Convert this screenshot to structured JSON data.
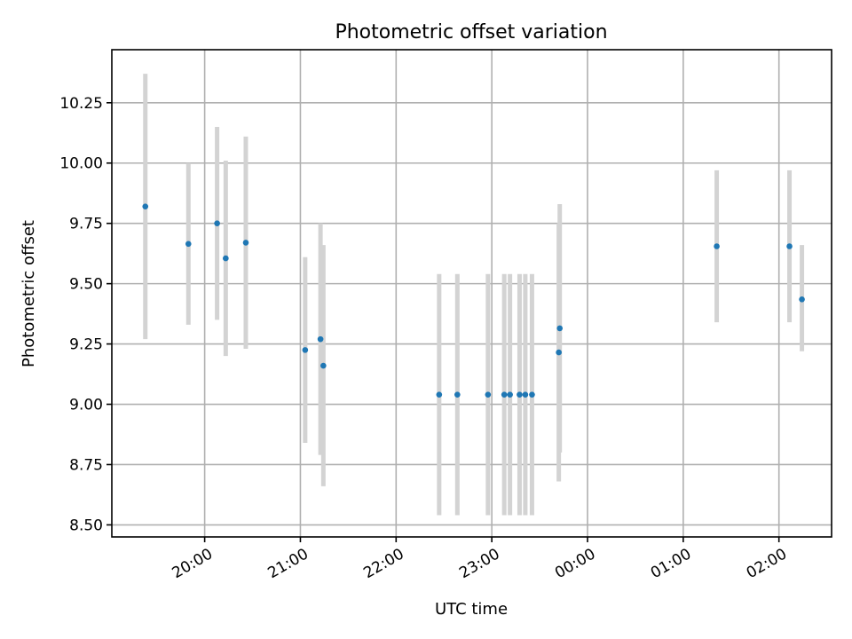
{
  "chart_data": {
    "type": "scatter",
    "title": "Photometric offset variation",
    "xlabel": "UTC time",
    "ylabel": "Photometric offset",
    "grid": true,
    "x_tick_labels": [
      "20:00",
      "21:00",
      "22:00",
      "23:00",
      "00:00",
      "01:00",
      "02:00"
    ],
    "y_tick_labels": [
      "8.50",
      "8.75",
      "9.00",
      "9.25",
      "9.50",
      "9.75",
      "10.00",
      "10.25"
    ],
    "y_ticks": [
      8.5,
      8.75,
      9.0,
      9.25,
      9.5,
      9.75,
      10.0,
      10.25
    ],
    "ylim": [
      8.45,
      10.47
    ],
    "xlim_hours": [
      19.03,
      26.55
    ],
    "x_ticks_hours": [
      20,
      21,
      22,
      23,
      24,
      25,
      26
    ],
    "series": [
      {
        "color": "#1f77b4",
        "error_color": "#d3d3d3",
        "points": [
          {
            "x": 19.38,
            "y": 9.82,
            "ylow": 9.27,
            "yhigh": 10.37
          },
          {
            "x": 19.83,
            "y": 9.665,
            "ylow": 9.33,
            "yhigh": 10.0
          },
          {
            "x": 20.13,
            "y": 9.75,
            "ylow": 9.35,
            "yhigh": 10.15
          },
          {
            "x": 20.22,
            "y": 9.605,
            "ylow": 9.2,
            "yhigh": 10.01
          },
          {
            "x": 20.43,
            "y": 9.67,
            "ylow": 9.23,
            "yhigh": 10.11
          },
          {
            "x": 21.05,
            "y": 9.225,
            "ylow": 8.84,
            "yhigh": 9.61
          },
          {
            "x": 21.21,
            "y": 9.27,
            "ylow": 8.79,
            "yhigh": 9.75
          },
          {
            "x": 21.24,
            "y": 9.16,
            "ylow": 8.66,
            "yhigh": 9.66
          },
          {
            "x": 22.45,
            "y": 9.04,
            "ylow": 8.54,
            "yhigh": 9.54
          },
          {
            "x": 22.64,
            "y": 9.04,
            "ylow": 8.54,
            "yhigh": 9.54
          },
          {
            "x": 22.96,
            "y": 9.04,
            "ylow": 8.54,
            "yhigh": 9.54
          },
          {
            "x": 23.13,
            "y": 9.04,
            "ylow": 8.54,
            "yhigh": 9.54
          },
          {
            "x": 23.19,
            "y": 9.04,
            "ylow": 8.54,
            "yhigh": 9.54
          },
          {
            "x": 23.29,
            "y": 9.04,
            "ylow": 8.54,
            "yhigh": 9.54
          },
          {
            "x": 23.35,
            "y": 9.04,
            "ylow": 8.54,
            "yhigh": 9.54
          },
          {
            "x": 23.42,
            "y": 9.04,
            "ylow": 8.54,
            "yhigh": 9.54
          },
          {
            "x": 23.7,
            "y": 9.215,
            "ylow": 8.68,
            "yhigh": 9.75
          },
          {
            "x": 23.71,
            "y": 9.315,
            "ylow": 8.8,
            "yhigh": 9.83
          },
          {
            "x": 25.35,
            "y": 9.655,
            "ylow": 9.34,
            "yhigh": 9.97
          },
          {
            "x": 26.11,
            "y": 9.655,
            "ylow": 9.34,
            "yhigh": 9.97
          },
          {
            "x": 26.24,
            "y": 9.435,
            "ylow": 9.22,
            "yhigh": 9.66
          }
        ]
      }
    ]
  }
}
